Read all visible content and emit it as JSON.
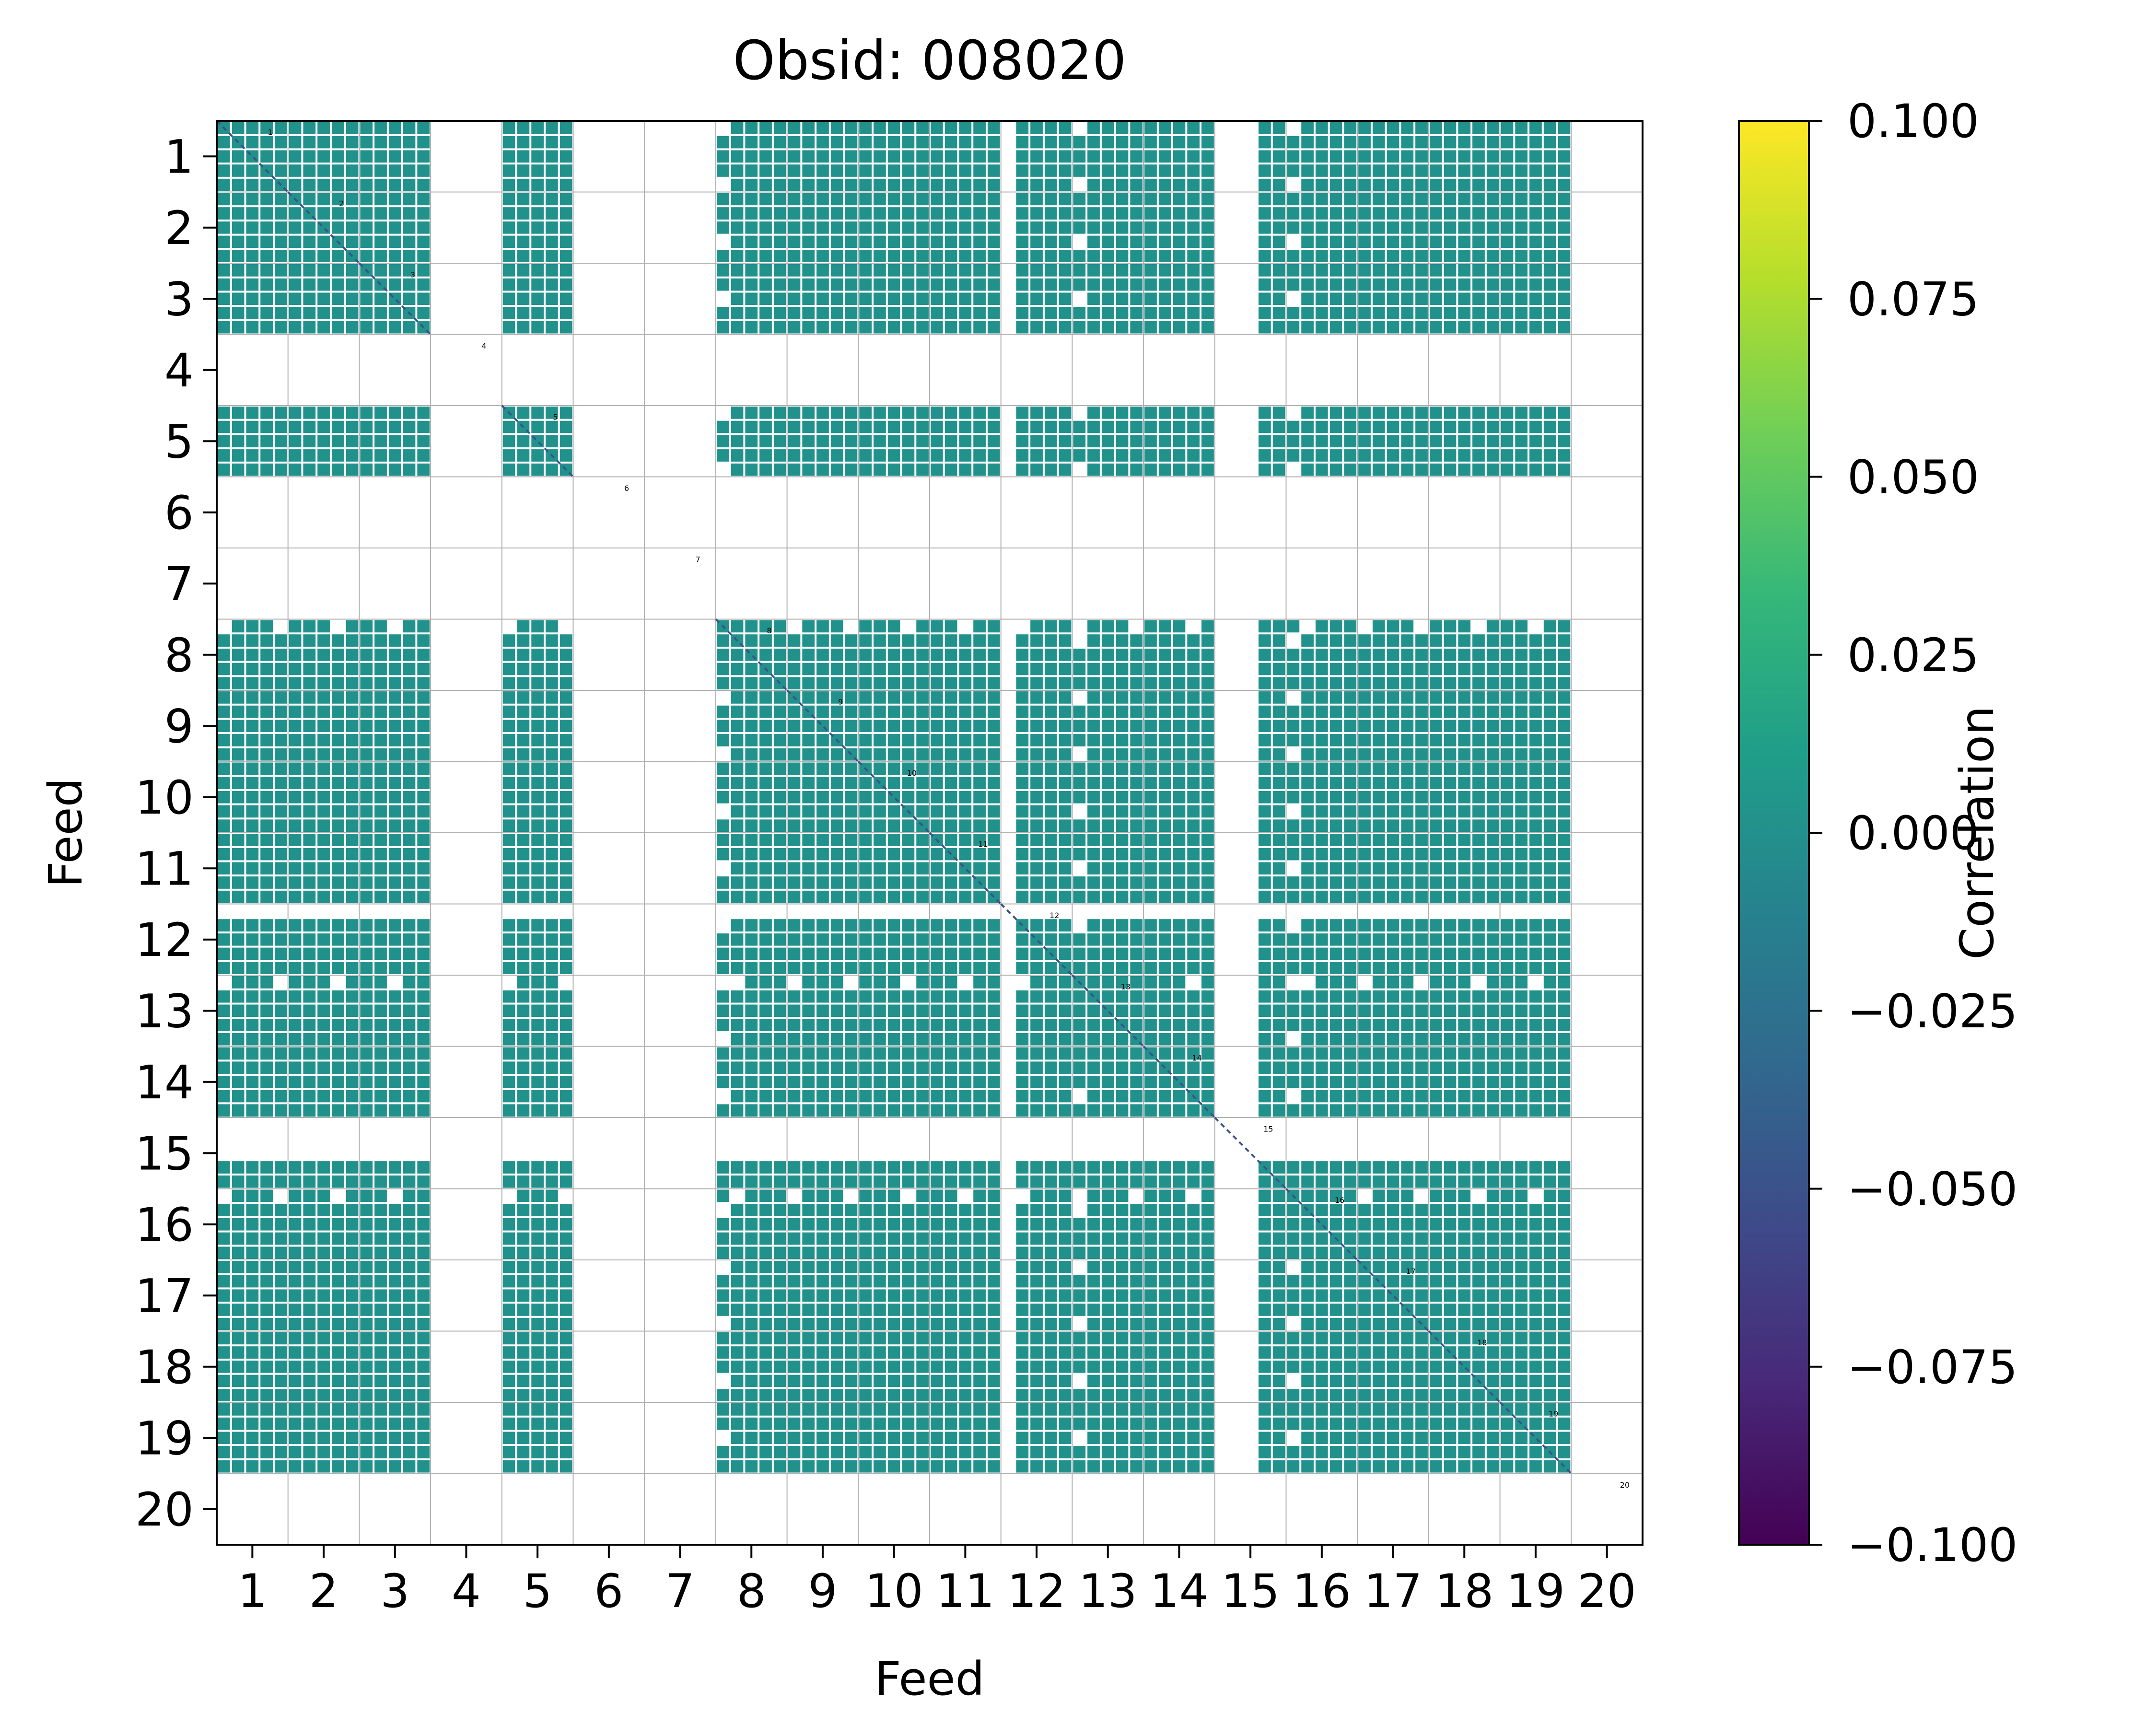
{
  "chart_data": {
    "type": "heatmap",
    "title": "Obsid: 008020",
    "xlabel": "Feed",
    "ylabel": "Feed",
    "feeds": [
      1,
      2,
      3,
      4,
      5,
      6,
      7,
      8,
      9,
      10,
      11,
      12,
      13,
      14,
      15,
      16,
      17,
      18,
      19,
      20
    ],
    "feed_labels": [
      "1",
      "2",
      "3",
      "4",
      "5",
      "6",
      "7",
      "8",
      "9",
      "10",
      "11",
      "12",
      "13",
      "14",
      "15",
      "16",
      "17",
      "18",
      "19",
      "20"
    ],
    "missing_feeds": [
      4,
      6,
      7,
      20
    ],
    "partially_masked_feeds": [
      8,
      12,
      13,
      15,
      16
    ],
    "fill_value": 0.0,
    "fill_color": "#21918c",
    "diagonal_color": "#3b528b",
    "grid": true,
    "colorbar": {
      "label": "Correlation",
      "min": -0.1,
      "max": 0.1,
      "ticks": [
        0.1,
        0.075,
        0.05,
        0.025,
        0.0,
        -0.025,
        -0.05,
        -0.075,
        -0.1
      ],
      "tick_labels": [
        "0.100",
        "0.075",
        "0.050",
        "0.025",
        "0.000",
        "−0.025",
        "−0.050",
        "−0.075",
        "−0.100"
      ],
      "colormap": "viridis",
      "stops": [
        "#440154",
        "#482878",
        "#3e4a89",
        "#31688e",
        "#26828e",
        "#1f9e89",
        "#35b779",
        "#6ece58",
        "#b5de2b",
        "#fde725"
      ]
    }
  }
}
